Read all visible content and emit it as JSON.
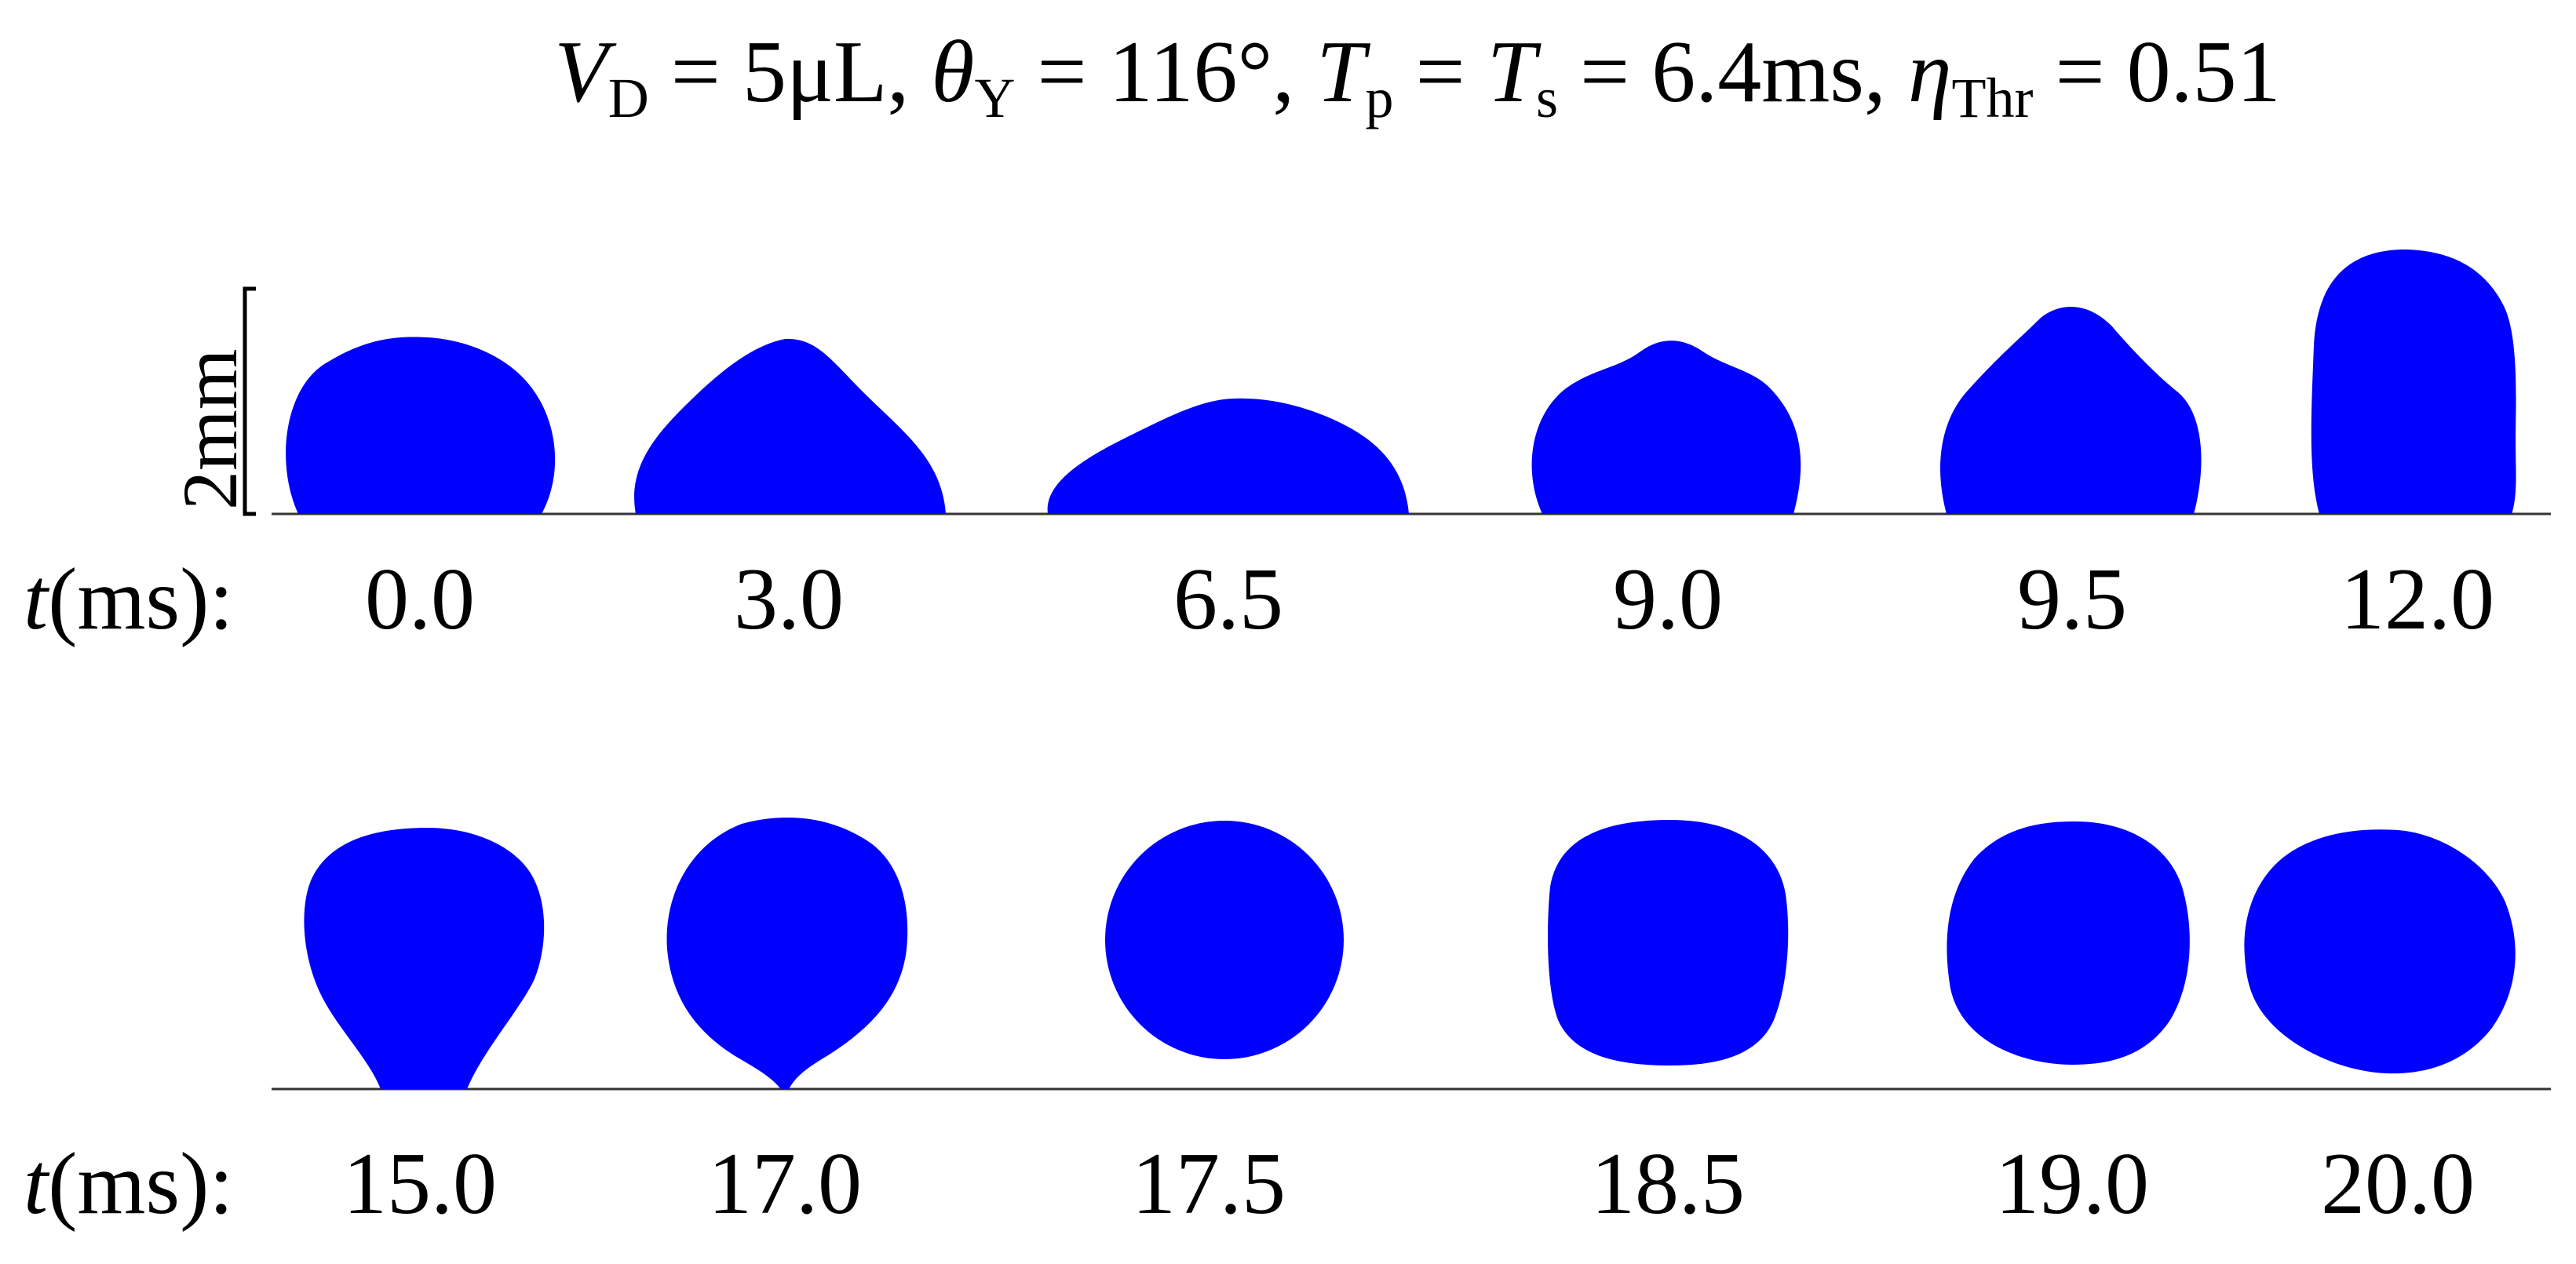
{
  "title": {
    "vd_sym": "V",
    "vd_sub": "D",
    "vd_val": " = 5μL, ",
    "theta_sym": "θ",
    "theta_sub": "Y",
    "theta_val": " = 116°, ",
    "tp_sym": "T",
    "tp_sub": "p",
    "eq1": " = ",
    "ts_sym": "T",
    "ts_sub": "s",
    "ts_val": " = 6.4ms, ",
    "eta_sym": "η",
    "eta_sub": "Thr",
    "eta_val": " = 0.51"
  },
  "scale_bar": {
    "label": "2mm"
  },
  "row_label": {
    "t": "t",
    "rest": "(ms):"
  },
  "drop_color": "#0000ff",
  "rows": [
    {
      "times": [
        "0.0",
        "3.0",
        "6.5",
        "9.0",
        "9.5",
        "12.0"
      ]
    },
    {
      "times": [
        "15.0",
        "17.0",
        "17.5",
        "18.5",
        "19.0",
        "20.0"
      ]
    }
  ]
}
